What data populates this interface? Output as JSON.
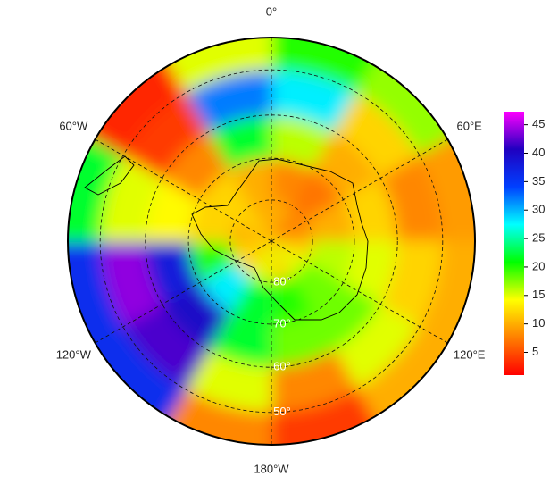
{
  "map": {
    "type": "polar-heatmap",
    "lat_edges": [
      -90,
      -80,
      -70,
      -60,
      -50,
      -43
    ],
    "lon_edges": [
      0,
      30,
      60,
      90,
      120,
      150,
      180,
      210,
      240,
      270,
      300,
      330,
      360
    ],
    "values": [
      [
        10,
        8,
        8,
        12,
        15,
        12,
        15,
        12,
        12,
        10,
        12,
        10
      ],
      [
        8,
        7,
        10,
        16,
        18,
        20,
        22,
        28,
        20,
        12,
        12,
        10
      ],
      [
        16,
        10,
        12,
        15,
        18,
        18,
        22,
        40,
        38,
        14,
        8,
        22
      ],
      [
        28,
        12,
        8,
        12,
        15,
        8,
        15,
        42,
        44,
        15,
        4,
        32
      ],
      [
        20,
        17,
        9,
        10,
        10,
        4,
        8,
        36,
        36,
        22,
        3,
        15
      ]
    ],
    "lat_circles": [
      {
        "value": -80,
        "label": "80°"
      },
      {
        "value": -70,
        "label": "70°"
      },
      {
        "value": -60,
        "label": "60°"
      },
      {
        "value": -50,
        "label": "50°"
      }
    ],
    "meridians": [
      {
        "value": 0,
        "label": "0°"
      },
      {
        "value": 60,
        "label": "60°E"
      },
      {
        "value": 120,
        "label": "120°E"
      },
      {
        "value": 180,
        "label": "180°W"
      },
      {
        "value": 240,
        "label": "120°W"
      },
      {
        "value": 300,
        "label": "60°W"
      }
    ],
    "colorbar": {
      "lim": [
        1,
        47.3
      ],
      "ticks": [
        5,
        10,
        15,
        20,
        25,
        30,
        35,
        40,
        45
      ],
      "colors": [
        "#ff0000",
        "#ff8000",
        "#ffff00",
        "#00ff00",
        "#00ffff",
        "#0040ff",
        "#2000c0",
        "#ff00ff"
      ]
    }
  }
}
